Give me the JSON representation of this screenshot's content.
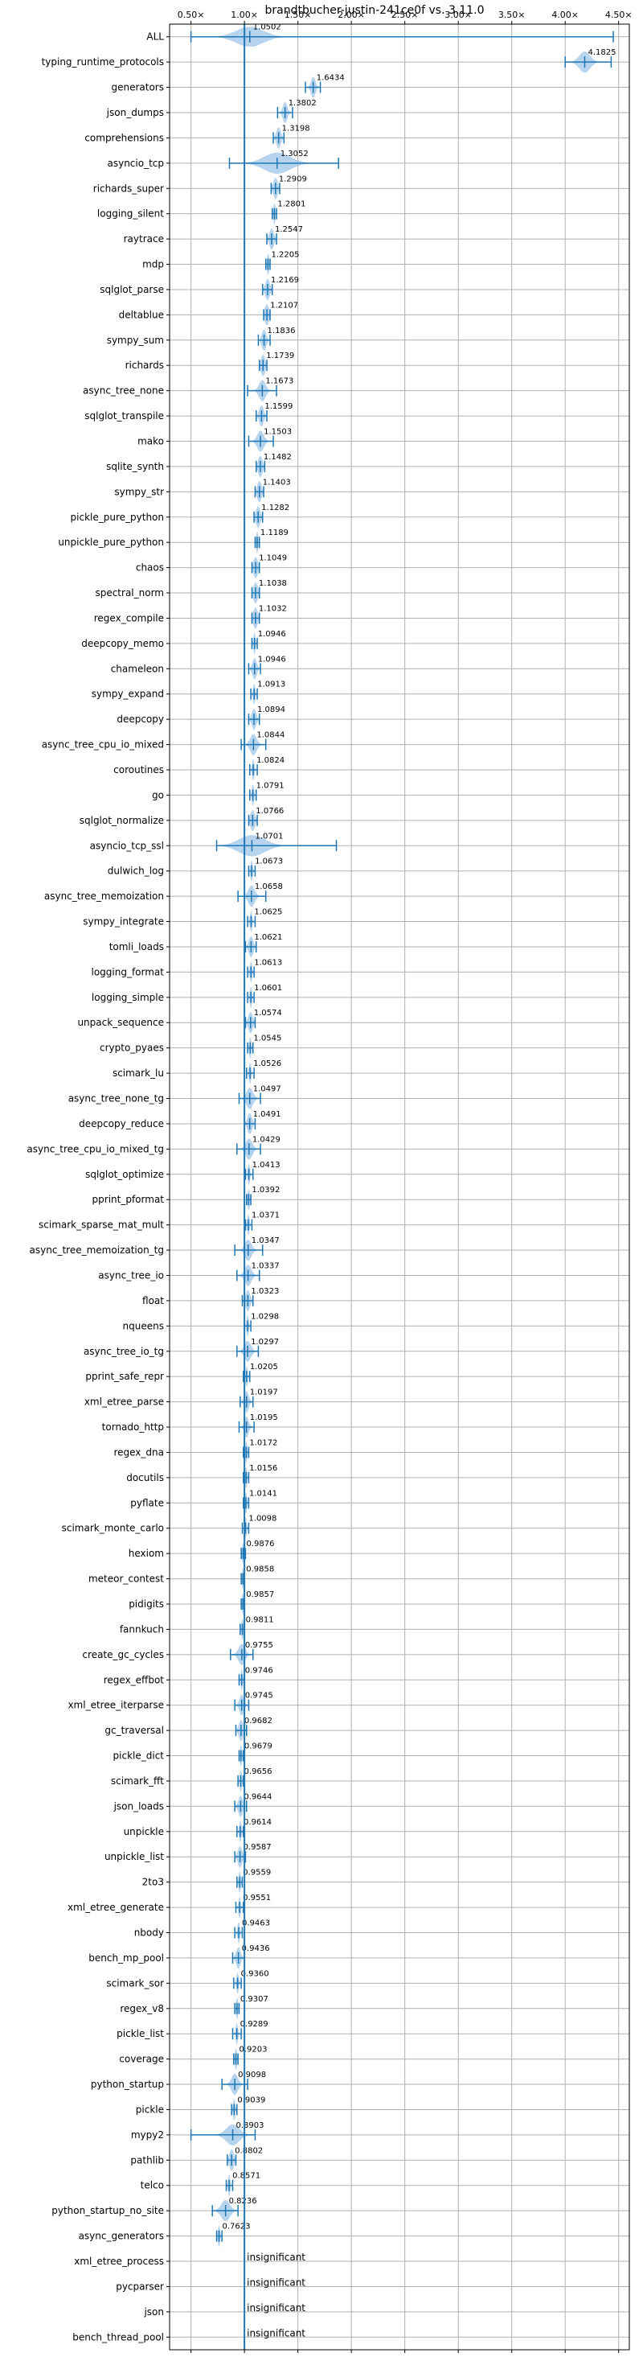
{
  "chart_data": {
    "type": "violin",
    "title": "brandtbucher-justin-241ce0f vs. 3.11.0",
    "xlabel": "",
    "ylabel": "",
    "xlim": [
      0.3,
      4.6
    ],
    "x_ticks": [
      0.5,
      1.0,
      1.5,
      2.0,
      2.5,
      3.0,
      3.5,
      4.0,
      4.5
    ],
    "x_tick_labels": [
      "0.50×",
      "1.00×",
      "1.50×",
      "2.00×",
      "2.50×",
      "3.00×",
      "3.50×",
      "4.00×",
      "4.50×"
    ],
    "reference_line": 1.0,
    "grid": true,
    "colors": {
      "violin": "#9ec5e8",
      "line": "#1f77b4",
      "grid": "#b0b0b0"
    },
    "benchmarks": [
      {
        "name": "ALL",
        "value": 1.0502,
        "label": "1.0502",
        "min": 0.5,
        "max": 4.45,
        "spread": 0.12
      },
      {
        "name": "typing_runtime_protocols",
        "value": 4.1825,
        "label": "4.1825",
        "min": 4.0,
        "max": 4.43,
        "spread": 0.05
      },
      {
        "name": "generators",
        "value": 1.6434,
        "label": "1.6434",
        "min": 1.57,
        "max": 1.71,
        "spread": 0.02
      },
      {
        "name": "json_dumps",
        "value": 1.3802,
        "label": "1.3802",
        "min": 1.31,
        "max": 1.45,
        "spread": 0.02
      },
      {
        "name": "comprehensions",
        "value": 1.3198,
        "label": "1.3198",
        "min": 1.27,
        "max": 1.37,
        "spread": 0.02
      },
      {
        "name": "asyncio_tcp",
        "value": 1.3052,
        "label": "1.3052",
        "min": 0.86,
        "max": 1.88,
        "spread": 0.12
      },
      {
        "name": "richards_super",
        "value": 1.2909,
        "label": "1.2909",
        "min": 1.25,
        "max": 1.33,
        "spread": 0.02
      },
      {
        "name": "logging_silent",
        "value": 1.2801,
        "label": "1.2801",
        "min": 1.26,
        "max": 1.3,
        "spread": 0.01
      },
      {
        "name": "raytrace",
        "value": 1.2547,
        "label": "1.2547",
        "min": 1.21,
        "max": 1.3,
        "spread": 0.02
      },
      {
        "name": "mdp",
        "value": 1.2205,
        "label": "1.2205",
        "min": 1.2,
        "max": 1.24,
        "spread": 0.01
      },
      {
        "name": "sqlglot_parse",
        "value": 1.2169,
        "label": "1.2169",
        "min": 1.17,
        "max": 1.26,
        "spread": 0.02
      },
      {
        "name": "deltablue",
        "value": 1.2107,
        "label": "1.2107",
        "min": 1.18,
        "max": 1.24,
        "spread": 0.02
      },
      {
        "name": "sympy_sum",
        "value": 1.1836,
        "label": "1.1836",
        "min": 1.13,
        "max": 1.24,
        "spread": 0.02
      },
      {
        "name": "richards",
        "value": 1.1739,
        "label": "1.1739",
        "min": 1.14,
        "max": 1.21,
        "spread": 0.02
      },
      {
        "name": "async_tree_none",
        "value": 1.1673,
        "label": "1.1673",
        "min": 1.03,
        "max": 1.3,
        "spread": 0.03
      },
      {
        "name": "sqlglot_transpile",
        "value": 1.1599,
        "label": "1.1599",
        "min": 1.11,
        "max": 1.21,
        "spread": 0.02
      },
      {
        "name": "mako",
        "value": 1.1503,
        "label": "1.1503",
        "min": 1.04,
        "max": 1.27,
        "spread": 0.03
      },
      {
        "name": "sqlite_synth",
        "value": 1.1482,
        "label": "1.1482",
        "min": 1.11,
        "max": 1.19,
        "spread": 0.02
      },
      {
        "name": "sympy_str",
        "value": 1.1403,
        "label": "1.1403",
        "min": 1.1,
        "max": 1.18,
        "spread": 0.02
      },
      {
        "name": "pickle_pure_python",
        "value": 1.1282,
        "label": "1.1282",
        "min": 1.09,
        "max": 1.17,
        "spread": 0.02
      },
      {
        "name": "unpickle_pure_python",
        "value": 1.1189,
        "label": "1.1189",
        "min": 1.1,
        "max": 1.14,
        "spread": 0.01
      },
      {
        "name": "chaos",
        "value": 1.1049,
        "label": "1.1049",
        "min": 1.07,
        "max": 1.14,
        "spread": 0.02
      },
      {
        "name": "spectral_norm",
        "value": 1.1038,
        "label": "1.1038",
        "min": 1.07,
        "max": 1.14,
        "spread": 0.02
      },
      {
        "name": "regex_compile",
        "value": 1.1032,
        "label": "1.1032",
        "min": 1.07,
        "max": 1.14,
        "spread": 0.02
      },
      {
        "name": "deepcopy_memo",
        "value": 1.0946,
        "label": "1.0946",
        "min": 1.07,
        "max": 1.12,
        "spread": 0.01
      },
      {
        "name": "chameleon",
        "value": 1.0946,
        "label": "1.0946",
        "min": 1.04,
        "max": 1.15,
        "spread": 0.02
      },
      {
        "name": "sympy_expand",
        "value": 1.0913,
        "label": "1.0913",
        "min": 1.06,
        "max": 1.12,
        "spread": 0.01
      },
      {
        "name": "deepcopy",
        "value": 1.0894,
        "label": "1.0894",
        "min": 1.04,
        "max": 1.14,
        "spread": 0.02
      },
      {
        "name": "async_tree_cpu_io_mixed",
        "value": 1.0844,
        "label": "1.0844",
        "min": 0.97,
        "max": 1.2,
        "spread": 0.03
      },
      {
        "name": "coroutines",
        "value": 1.0824,
        "label": "1.0824",
        "min": 1.05,
        "max": 1.12,
        "spread": 0.01
      },
      {
        "name": "go",
        "value": 1.0791,
        "label": "1.0791",
        "min": 1.05,
        "max": 1.11,
        "spread": 0.01
      },
      {
        "name": "sqlglot_normalize",
        "value": 1.0766,
        "label": "1.0766",
        "min": 1.04,
        "max": 1.12,
        "spread": 0.02
      },
      {
        "name": "asyncio_tcp_ssl",
        "value": 1.0701,
        "label": "1.0701",
        "min": 0.74,
        "max": 1.86,
        "spread": 0.12
      },
      {
        "name": "dulwich_log",
        "value": 1.0673,
        "label": "1.0673",
        "min": 1.04,
        "max": 1.1,
        "spread": 0.01
      },
      {
        "name": "async_tree_memoization",
        "value": 1.0658,
        "label": "1.0658",
        "min": 0.94,
        "max": 1.2,
        "spread": 0.03
      },
      {
        "name": "sympy_integrate",
        "value": 1.0625,
        "label": "1.0625",
        "min": 1.03,
        "max": 1.1,
        "spread": 0.01
      },
      {
        "name": "tomli_loads",
        "value": 1.0621,
        "label": "1.0621",
        "min": 1.01,
        "max": 1.11,
        "spread": 0.02
      },
      {
        "name": "logging_format",
        "value": 1.0613,
        "label": "1.0613",
        "min": 1.03,
        "max": 1.09,
        "spread": 0.01
      },
      {
        "name": "logging_simple",
        "value": 1.0601,
        "label": "1.0601",
        "min": 1.03,
        "max": 1.09,
        "spread": 0.01
      },
      {
        "name": "unpack_sequence",
        "value": 1.0574,
        "label": "1.0574",
        "min": 1.01,
        "max": 1.1,
        "spread": 0.02
      },
      {
        "name": "crypto_pyaes",
        "value": 1.0545,
        "label": "1.0545",
        "min": 1.03,
        "max": 1.08,
        "spread": 0.01
      },
      {
        "name": "scimark_lu",
        "value": 1.0526,
        "label": "1.0526",
        "min": 1.02,
        "max": 1.09,
        "spread": 0.01
      },
      {
        "name": "async_tree_none_tg",
        "value": 1.0497,
        "label": "1.0497",
        "min": 0.95,
        "max": 1.15,
        "spread": 0.03
      },
      {
        "name": "deepcopy_reduce",
        "value": 1.0491,
        "label": "1.0491",
        "min": 1.0,
        "max": 1.1,
        "spread": 0.02
      },
      {
        "name": "async_tree_cpu_io_mixed_tg",
        "value": 1.0429,
        "label": "1.0429",
        "min": 0.93,
        "max": 1.15,
        "spread": 0.03
      },
      {
        "name": "sqlglot_optimize",
        "value": 1.0413,
        "label": "1.0413",
        "min": 1.01,
        "max": 1.08,
        "spread": 0.01
      },
      {
        "name": "pprint_pformat",
        "value": 1.0392,
        "label": "1.0392",
        "min": 1.02,
        "max": 1.06,
        "spread": 0.01
      },
      {
        "name": "scimark_sparse_mat_mult",
        "value": 1.0371,
        "label": "1.0371",
        "min": 1.01,
        "max": 1.07,
        "spread": 0.01
      },
      {
        "name": "async_tree_memoization_tg",
        "value": 1.0347,
        "label": "1.0347",
        "min": 0.91,
        "max": 1.17,
        "spread": 0.03
      },
      {
        "name": "async_tree_io",
        "value": 1.0337,
        "label": "1.0337",
        "min": 0.93,
        "max": 1.14,
        "spread": 0.03
      },
      {
        "name": "float",
        "value": 1.0323,
        "label": "1.0323",
        "min": 0.98,
        "max": 1.08,
        "spread": 0.02
      },
      {
        "name": "nqueens",
        "value": 1.0298,
        "label": "1.0298",
        "min": 1.0,
        "max": 1.06,
        "spread": 0.01
      },
      {
        "name": "async_tree_io_tg",
        "value": 1.0297,
        "label": "1.0297",
        "min": 0.93,
        "max": 1.13,
        "spread": 0.03
      },
      {
        "name": "pprint_safe_repr",
        "value": 1.0205,
        "label": "1.0205",
        "min": 0.99,
        "max": 1.05,
        "spread": 0.01
      },
      {
        "name": "xml_etree_parse",
        "value": 1.0197,
        "label": "1.0197",
        "min": 0.96,
        "max": 1.08,
        "spread": 0.02
      },
      {
        "name": "tornado_http",
        "value": 1.0195,
        "label": "1.0195",
        "min": 0.95,
        "max": 1.09,
        "spread": 0.02
      },
      {
        "name": "regex_dna",
        "value": 1.0172,
        "label": "1.0172",
        "min": 0.99,
        "max": 1.04,
        "spread": 0.01
      },
      {
        "name": "docutils",
        "value": 1.0156,
        "label": "1.0156",
        "min": 0.99,
        "max": 1.04,
        "spread": 0.01
      },
      {
        "name": "pyflate",
        "value": 1.0141,
        "label": "1.0141",
        "min": 0.99,
        "max": 1.04,
        "spread": 0.01
      },
      {
        "name": "scimark_monte_carlo",
        "value": 1.0098,
        "label": "1.0098",
        "min": 0.98,
        "max": 1.04,
        "spread": 0.01
      },
      {
        "name": "hexiom",
        "value": 0.9876,
        "label": "0.9876",
        "min": 0.97,
        "max": 1.01,
        "spread": 0.01
      },
      {
        "name": "meteor_contest",
        "value": 0.9858,
        "label": "0.9858",
        "min": 0.97,
        "max": 1.0,
        "spread": 0.01
      },
      {
        "name": "pidigits",
        "value": 0.9857,
        "label": "0.9857",
        "min": 0.97,
        "max": 1.0,
        "spread": 0.01
      },
      {
        "name": "fannkuch",
        "value": 0.9811,
        "label": "0.9811",
        "min": 0.96,
        "max": 1.0,
        "spread": 0.01
      },
      {
        "name": "create_gc_cycles",
        "value": 0.9755,
        "label": "0.9755",
        "min": 0.87,
        "max": 1.08,
        "spread": 0.03
      },
      {
        "name": "regex_effbot",
        "value": 0.9746,
        "label": "0.9746",
        "min": 0.95,
        "max": 1.0,
        "spread": 0.01
      },
      {
        "name": "xml_etree_iterparse",
        "value": 0.9745,
        "label": "0.9745",
        "min": 0.91,
        "max": 1.04,
        "spread": 0.02
      },
      {
        "name": "gc_traversal",
        "value": 0.9682,
        "label": "0.9682",
        "min": 0.92,
        "max": 1.02,
        "spread": 0.02
      },
      {
        "name": "pickle_dict",
        "value": 0.9679,
        "label": "0.9679",
        "min": 0.95,
        "max": 0.99,
        "spread": 0.01
      },
      {
        "name": "scimark_fft",
        "value": 0.9656,
        "label": "0.9656",
        "min": 0.94,
        "max": 0.99,
        "spread": 0.01
      },
      {
        "name": "json_loads",
        "value": 0.9644,
        "label": "0.9644",
        "min": 0.91,
        "max": 1.02,
        "spread": 0.02
      },
      {
        "name": "unpickle",
        "value": 0.9614,
        "label": "0.9614",
        "min": 0.93,
        "max": 0.99,
        "spread": 0.01
      },
      {
        "name": "unpickle_list",
        "value": 0.9587,
        "label": "0.9587",
        "min": 0.91,
        "max": 1.01,
        "spread": 0.02
      },
      {
        "name": "2to3",
        "value": 0.9559,
        "label": "0.9559",
        "min": 0.93,
        "max": 0.98,
        "spread": 0.01
      },
      {
        "name": "xml_etree_generate",
        "value": 0.9551,
        "label": "0.9551",
        "min": 0.92,
        "max": 0.99,
        "spread": 0.01
      },
      {
        "name": "nbody",
        "value": 0.9463,
        "label": "0.9463",
        "min": 0.91,
        "max": 0.98,
        "spread": 0.01
      },
      {
        "name": "bench_mp_pool",
        "value": 0.9436,
        "label": "0.9436",
        "min": 0.89,
        "max": 1.0,
        "spread": 0.02
      },
      {
        "name": "scimark_sor",
        "value": 0.936,
        "label": "0.9360",
        "min": 0.9,
        "max": 0.97,
        "spread": 0.01
      },
      {
        "name": "regex_v8",
        "value": 0.9307,
        "label": "0.9307",
        "min": 0.91,
        "max": 0.95,
        "spread": 0.01
      },
      {
        "name": "pickle_list",
        "value": 0.9289,
        "label": "0.9289",
        "min": 0.89,
        "max": 0.97,
        "spread": 0.01
      },
      {
        "name": "coverage",
        "value": 0.9203,
        "label": "0.9203",
        "min": 0.9,
        "max": 0.94,
        "spread": 0.01
      },
      {
        "name": "python_startup",
        "value": 0.9098,
        "label": "0.9098",
        "min": 0.79,
        "max": 1.03,
        "spread": 0.03
      },
      {
        "name": "pickle",
        "value": 0.9039,
        "label": "0.9039",
        "min": 0.88,
        "max": 0.93,
        "spread": 0.01
      },
      {
        "name": "mypy2",
        "value": 0.8903,
        "label": "0.8903",
        "min": 0.5,
        "max": 1.1,
        "spread": 0.06
      },
      {
        "name": "pathlib",
        "value": 0.8802,
        "label": "0.8802",
        "min": 0.84,
        "max": 0.92,
        "spread": 0.02
      },
      {
        "name": "telco",
        "value": 0.8571,
        "label": "0.8571",
        "min": 0.83,
        "max": 0.89,
        "spread": 0.01
      },
      {
        "name": "python_startup_no_site",
        "value": 0.8236,
        "label": "0.8236",
        "min": 0.7,
        "max": 0.94,
        "spread": 0.04
      },
      {
        "name": "async_generators",
        "value": 0.7623,
        "label": "0.7623",
        "min": 0.74,
        "max": 0.79,
        "spread": 0.01
      },
      {
        "name": "xml_etree_process",
        "value": null,
        "label": "insignificant"
      },
      {
        "name": "pycparser",
        "value": null,
        "label": "insignificant"
      },
      {
        "name": "json",
        "value": null,
        "label": "insignificant"
      },
      {
        "name": "bench_thread_pool",
        "value": null,
        "label": "insignificant"
      }
    ]
  }
}
